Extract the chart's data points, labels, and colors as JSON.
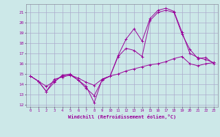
{
  "xlabel": "Windchill (Refroidissement éolien,°C)",
  "bg_color": "#cce8e8",
  "grid_color": "#aaaacc",
  "line_color": "#990099",
  "xlim": [
    -0.5,
    23.5
  ],
  "ylim": [
    11.8,
    21.8
  ],
  "yticks": [
    12,
    13,
    14,
    15,
    16,
    17,
    18,
    19,
    20,
    21
  ],
  "xticks": [
    0,
    1,
    2,
    3,
    4,
    5,
    6,
    7,
    8,
    9,
    10,
    11,
    12,
    13,
    14,
    15,
    16,
    17,
    18,
    19,
    20,
    21,
    22,
    23
  ],
  "series": [
    {
      "x": [
        0,
        1,
        2,
        3,
        4,
        5,
        6,
        7,
        8,
        9,
        10,
        11,
        12,
        13,
        14,
        15,
        16,
        17,
        18,
        19,
        20,
        21,
        22,
        23
      ],
      "y": [
        14.8,
        14.3,
        13.3,
        14.5,
        14.7,
        14.9,
        14.4,
        13.8,
        12.2,
        14.5,
        14.8,
        16.8,
        18.4,
        19.4,
        18.2,
        20.4,
        21.2,
        21.4,
        21.1,
        19.1,
        17.0,
        16.6,
        16.4,
        16.1
      ]
    },
    {
      "x": [
        0,
        1,
        2,
        3,
        4,
        5,
        6,
        7,
        8,
        9,
        10,
        11,
        12,
        13,
        14,
        15,
        16,
        17,
        18,
        19,
        20,
        21,
        22,
        23
      ],
      "y": [
        14.8,
        14.3,
        13.3,
        14.2,
        14.9,
        15.0,
        14.4,
        13.6,
        12.9,
        14.4,
        14.8,
        16.7,
        17.5,
        17.3,
        16.7,
        20.2,
        21.0,
        21.2,
        21.0,
        18.9,
        17.4,
        16.5,
        16.6,
        16.0
      ]
    },
    {
      "x": [
        0,
        1,
        2,
        3,
        4,
        5,
        6,
        7,
        8,
        9,
        10,
        11,
        12,
        13,
        14,
        15,
        16,
        17,
        18,
        19,
        20,
        21,
        22,
        23
      ],
      "y": [
        14.8,
        14.3,
        13.8,
        14.3,
        14.8,
        14.9,
        14.6,
        14.2,
        13.9,
        14.5,
        14.8,
        15.0,
        15.3,
        15.5,
        15.7,
        15.9,
        16.0,
        16.2,
        16.5,
        16.7,
        16.0,
        15.8,
        16.0,
        16.1
      ]
    }
  ]
}
